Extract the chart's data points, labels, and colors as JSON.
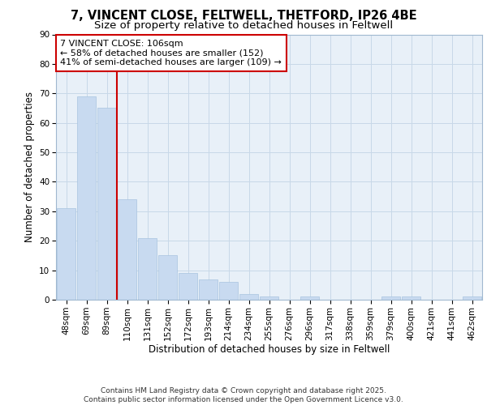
{
  "title1": "7, VINCENT CLOSE, FELTWELL, THETFORD, IP26 4BE",
  "title2": "Size of property relative to detached houses in Feltwell",
  "xlabel": "Distribution of detached houses by size in Feltwell",
  "ylabel": "Number of detached properties",
  "categories": [
    "48sqm",
    "69sqm",
    "89sqm",
    "110sqm",
    "131sqm",
    "152sqm",
    "172sqm",
    "193sqm",
    "214sqm",
    "234sqm",
    "255sqm",
    "276sqm",
    "296sqm",
    "317sqm",
    "338sqm",
    "359sqm",
    "379sqm",
    "400sqm",
    "421sqm",
    "441sqm",
    "462sqm"
  ],
  "values": [
    31,
    69,
    65,
    34,
    21,
    15,
    9,
    7,
    6,
    2,
    1,
    0,
    1,
    0,
    0,
    0,
    1,
    1,
    0,
    0,
    1
  ],
  "bar_color": "#c8daf0",
  "bar_edge_color": "#a8c4e0",
  "vline_x": 2.5,
  "vline_color": "#cc0000",
  "annotation_text": "7 VINCENT CLOSE: 106sqm\n← 58% of detached houses are smaller (152)\n41% of semi-detached houses are larger (109) →",
  "annotation_box_color": "#ffffff",
  "annotation_box_edge": "#cc0000",
  "ylim": [
    0,
    90
  ],
  "yticks": [
    0,
    10,
    20,
    30,
    40,
    50,
    60,
    70,
    80,
    90
  ],
  "grid_color": "#c8d8e8",
  "bg_color": "#e8f0f8",
  "footer": "Contains HM Land Registry data © Crown copyright and database right 2025.\nContains public sector information licensed under the Open Government Licence v3.0.",
  "title_fontsize": 10.5,
  "subtitle_fontsize": 9.5,
  "axis_label_fontsize": 8.5,
  "tick_fontsize": 7.5,
  "annotation_fontsize": 8,
  "footer_fontsize": 6.5
}
